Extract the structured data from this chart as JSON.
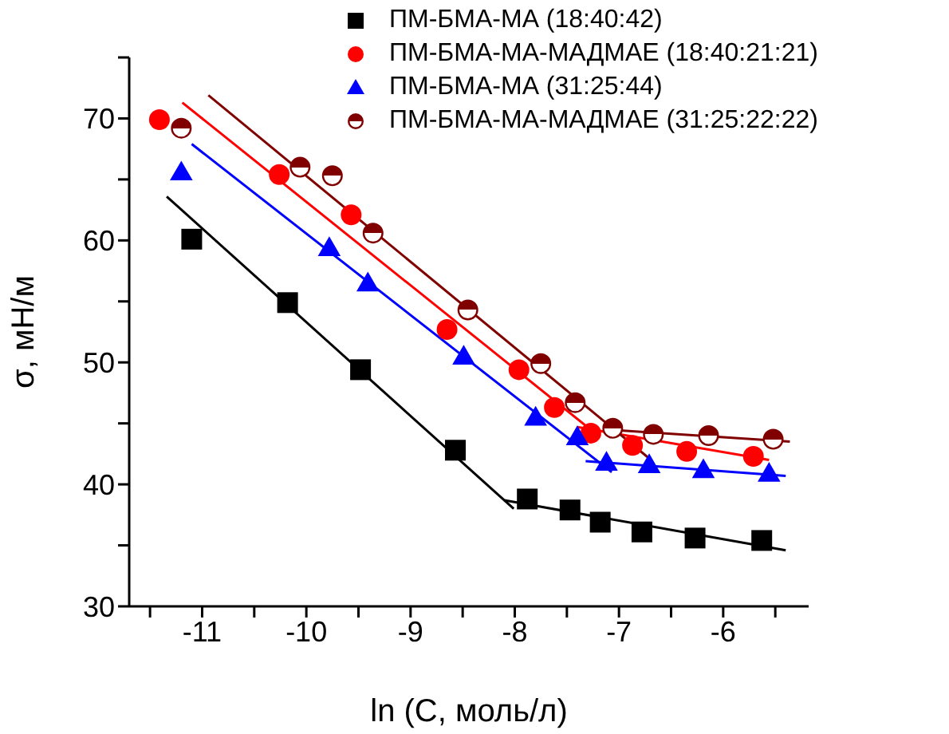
{
  "chart_data": {
    "type": "scatter",
    "xlabel": "ln (C, моль/л)",
    "ylabel": "σ, мН/м",
    "xlim": [
      -11.7,
      -5.18
    ],
    "ylim": [
      30,
      75
    ],
    "xticks": [
      {
        "value": -11.5,
        "label": null
      },
      -11,
      {
        "value": -10.5,
        "label": null
      },
      -10,
      {
        "value": -9.5,
        "label": null
      },
      -9,
      {
        "value": -8.5,
        "label": null
      },
      -8,
      {
        "value": -7.5,
        "label": null
      },
      -7,
      {
        "value": -6.5,
        "label": null
      },
      -6,
      {
        "value": -5.5,
        "label": null
      }
    ],
    "yticks": [
      30,
      {
        "value": 35,
        "label": null
      },
      40,
      {
        "value": 45,
        "label": null
      },
      50,
      {
        "value": 55,
        "label": null
      },
      60,
      {
        "value": 65,
        "label": null
      },
      70,
      {
        "value": 75,
        "label": null
      }
    ],
    "grid": false,
    "legend": "top right",
    "series": [
      {
        "name": "ПМ-БМА-МА (18:40:42)",
        "marker": "square",
        "color": "#000000",
        "x": [
          -11.1,
          -10.18,
          -9.48,
          -8.57,
          -7.88,
          -7.47,
          -7.18,
          -6.78,
          -6.27,
          -5.63
        ],
        "values": [
          60.1,
          54.9,
          49.4,
          42.8,
          38.8,
          37.9,
          36.9,
          36.1,
          35.6,
          35.4
        ]
      },
      {
        "name": "ПМ-БМА-МА-МАДМАЕ (18:40:21:21)",
        "marker": "circle",
        "color": "#ff0000",
        "x": [
          -11.41,
          -10.26,
          -9.57,
          -8.65,
          -7.96,
          -7.62,
          -7.27,
          -6.87,
          -6.35,
          -5.71
        ],
        "values": [
          69.9,
          65.4,
          62.1,
          52.7,
          49.4,
          46.3,
          44.2,
          43.2,
          42.7,
          42.3
        ]
      },
      {
        "name": "ПМ-БМА-МА (31:25:44)",
        "marker": "triangle",
        "color": "#0000ff",
        "x": [
          -11.2,
          -9.78,
          -9.41,
          -8.49,
          -7.8,
          -7.4,
          -7.12,
          -6.71,
          -6.19,
          -5.56
        ],
        "values": [
          65.6,
          59.4,
          56.5,
          50.5,
          45.5,
          43.9,
          41.8,
          41.6,
          41.2,
          40.9
        ]
      },
      {
        "name": "ПМ-БМА-МА-МАДМАЕ (31:25:22:22)",
        "marker": "circle",
        "color": "#800000",
        "x": [
          -11.2,
          -10.06,
          -9.75,
          -9.36,
          -8.45,
          -7.75,
          -7.42,
          -7.06,
          -6.67,
          -6.14,
          -5.52
        ],
        "values": [
          69.2,
          66.0,
          65.3,
          60.6,
          54.3,
          49.9,
          46.7,
          44.6,
          44.1,
          44.0,
          43.7
        ]
      },
      {
        "type": "line",
        "marker": "none",
        "color": "#000000",
        "x": [
          -11.34,
          -8.01
        ],
        "values": [
          63.6,
          38.0
        ]
      },
      {
        "type": "line",
        "marker": "none",
        "color": "#000000",
        "x": [
          -8.1,
          -5.4
        ],
        "values": [
          38.7,
          34.6
        ]
      },
      {
        "type": "line",
        "marker": "none",
        "color": "#ff0000",
        "x": [
          -11.19,
          -7.2
        ],
        "values": [
          71.3,
          44.0
        ]
      },
      {
        "type": "line",
        "marker": "none",
        "color": "#ff0000",
        "x": [
          -7.4,
          -5.56
        ],
        "values": [
          44.7,
          42.0
        ]
      },
      {
        "type": "line",
        "marker": "none",
        "color": "#0000ff",
        "x": [
          -11.1,
          -7.07
        ],
        "values": [
          67.9,
          41.0
        ]
      },
      {
        "type": "line",
        "marker": "none",
        "color": "#0000ff",
        "x": [
          -7.32,
          -5.4
        ],
        "values": [
          41.9,
          40.7
        ]
      },
      {
        "type": "line",
        "marker": "none",
        "color": "#800000",
        "x": [
          -10.94,
          -6.72
        ],
        "values": [
          71.9,
          42.2
        ]
      },
      {
        "type": "line",
        "marker": "none",
        "color": "#800000",
        "x": [
          -7.12,
          -5.36
        ],
        "values": [
          44.5,
          43.5
        ]
      }
    ]
  }
}
